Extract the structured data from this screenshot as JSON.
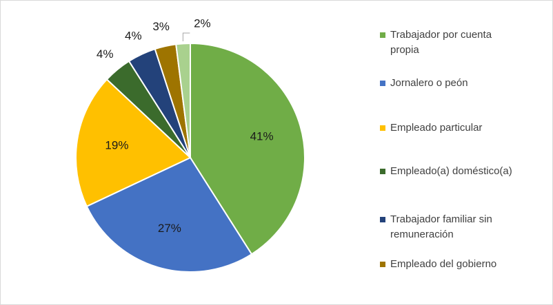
{
  "chart_data": {
    "type": "pie",
    "categories": [
      "Trabajador por cuenta propia",
      "Jornalero o peón",
      "Empleado particular",
      "Empleado(a) doméstico(a)",
      "Trabajador familiar sin remuneración",
      "Empleado del gobierno",
      null
    ],
    "values": [
      41,
      27,
      19,
      4,
      4,
      3,
      2
    ],
    "value_labels": [
      "41%",
      "27%",
      "19%",
      "4%",
      "4%",
      "3%",
      "2%"
    ],
    "colors": [
      "#70ad47",
      "#4472c4",
      "#ffc000",
      "#3b6b2c",
      "#23427a",
      "#9e7400",
      "#a9d18e"
    ],
    "legend": "right"
  }
}
